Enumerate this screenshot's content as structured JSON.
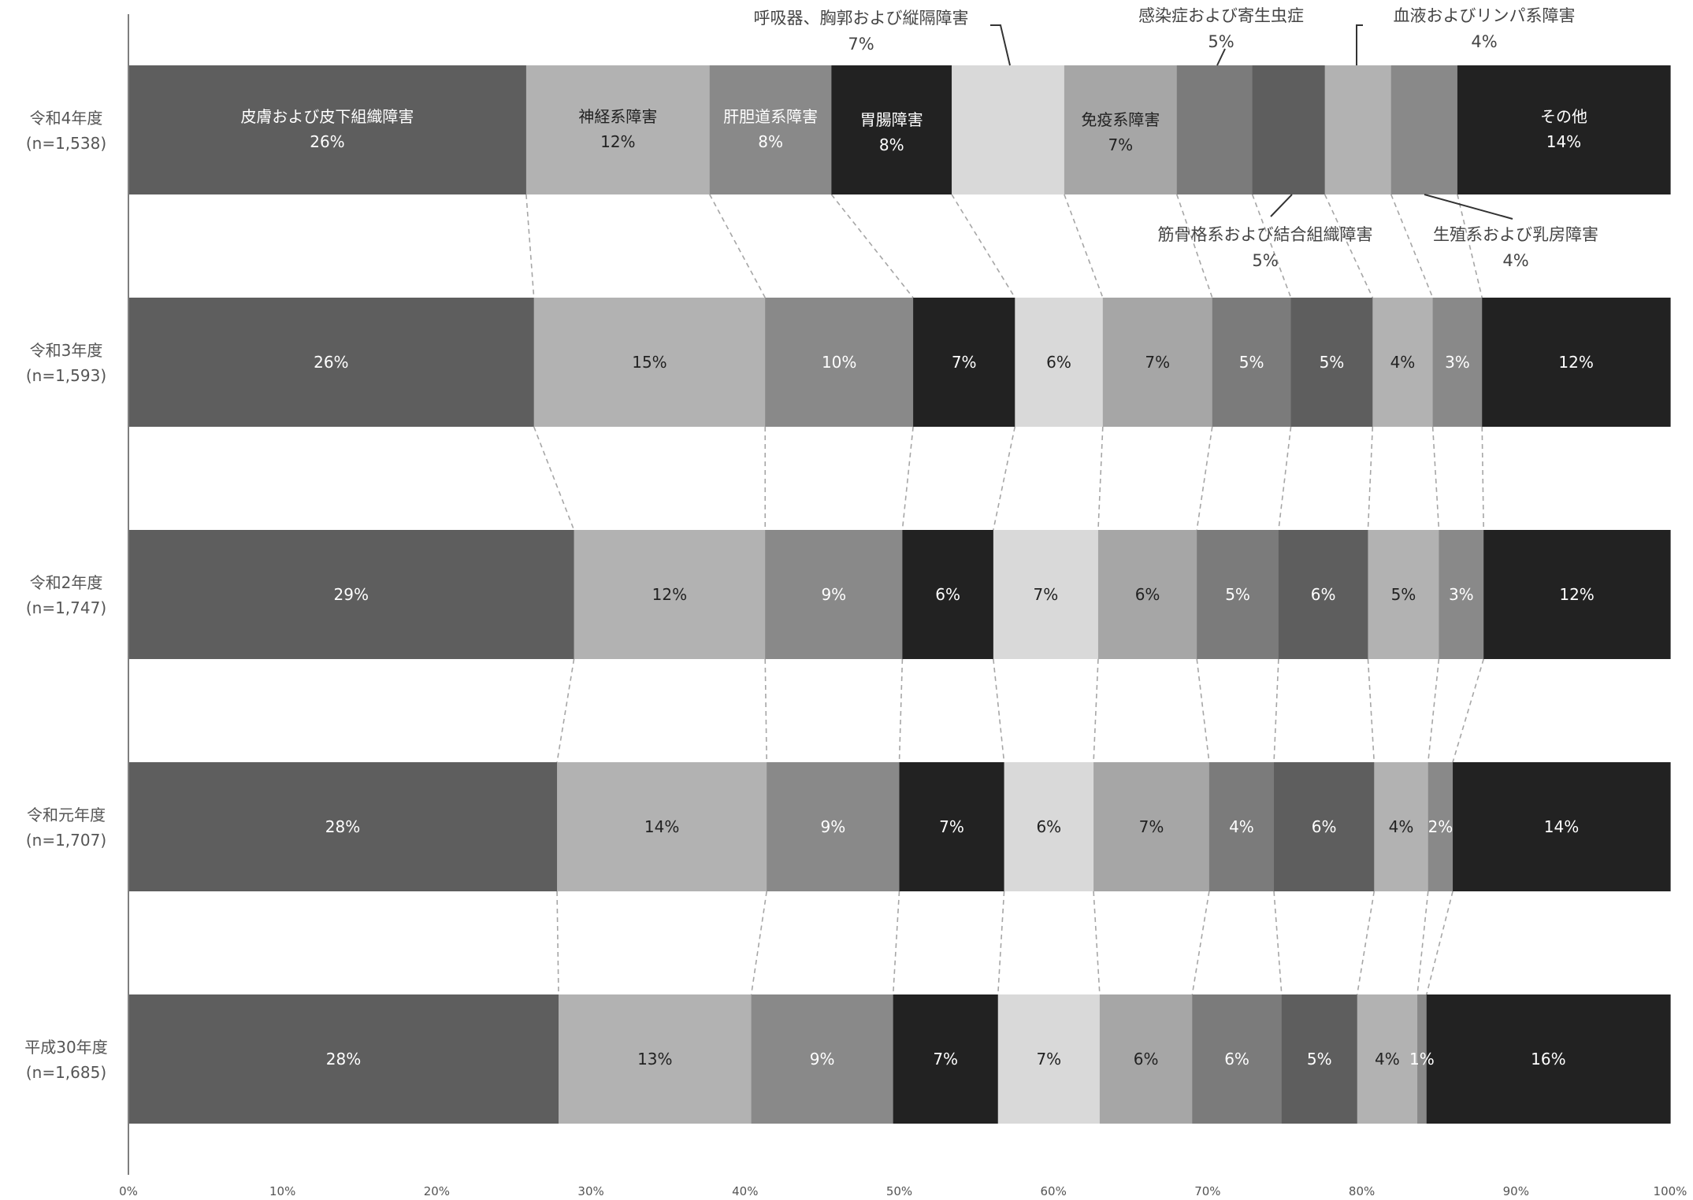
{
  "chart_data": {
    "type": "bar",
    "orientation": "horizontal",
    "stacked": true,
    "percent": true,
    "xlim": [
      0,
      100
    ],
    "x_ticks": [
      "0%",
      "10%",
      "20%",
      "30%",
      "40%",
      "50%",
      "60%",
      "70%",
      "80%",
      "90%",
      "100%"
    ],
    "grid": false,
    "legend": "none",
    "categories": [
      {
        "label": "令和4年度",
        "n": "(n=1,538)"
      },
      {
        "label": "令和3年度",
        "n": "(n=1,593)"
      },
      {
        "label": "令和2年度",
        "n": "(n=1,747)"
      },
      {
        "label": "令和元年度",
        "n": "(n=1,707)"
      },
      {
        "label": "平成30年度",
        "n": "(n=1,685)"
      }
    ],
    "series": [
      {
        "name": "皮膚および皮下組織障害",
        "color": "#5e5e5e",
        "text_color": "#ffffff",
        "values": [
          25.8,
          26.3,
          28.9,
          27.8,
          27.9
        ],
        "labels": [
          "26%",
          "26%",
          "29%",
          "28%",
          "28%"
        ]
      },
      {
        "name": "神経系障害",
        "color": "#b2b2b2",
        "text_color": "#222222",
        "values": [
          11.9,
          15.0,
          12.4,
          13.6,
          12.5
        ],
        "labels": [
          "12%",
          "15%",
          "12%",
          "14%",
          "13%"
        ]
      },
      {
        "name": "肝胆道系障害",
        "color": "#898989",
        "text_color": "#ffffff",
        "values": [
          7.9,
          9.6,
          8.9,
          8.6,
          9.2
        ],
        "labels": [
          "8%",
          "10%",
          "9%",
          "9%",
          "9%"
        ]
      },
      {
        "name": "胃腸障害",
        "color": "#222222",
        "text_color": "#ffffff",
        "values": [
          7.8,
          6.6,
          5.9,
          6.8,
          6.8
        ],
        "labels": [
          "8%",
          "7%",
          "6%",
          "7%",
          "7%"
        ]
      },
      {
        "name": "呼吸器、胸郭および縦隔障害",
        "color": "#d9d9d9",
        "text_color": "#222222",
        "values": [
          7.3,
          5.7,
          6.8,
          5.8,
          6.6
        ],
        "labels": [
          "7%",
          "6%",
          "7%",
          "6%",
          "7%"
        ]
      },
      {
        "name": "免疫系障害",
        "color": "#a6a6a6",
        "text_color": "#222222",
        "values": [
          7.3,
          7.1,
          6.4,
          7.5,
          6.0
        ],
        "labels": [
          "7%",
          "7%",
          "6%",
          "7%",
          "6%"
        ]
      },
      {
        "name": "感染症および寄生虫症",
        "color": "#7b7b7b",
        "text_color": "#ffffff",
        "values": [
          4.9,
          5.1,
          5.3,
          4.2,
          5.8
        ],
        "labels": [
          "5%",
          "5%",
          "5%",
          "4%",
          "6%"
        ]
      },
      {
        "name": "筋骨格系および結合組織障害",
        "color": "#5e5e5e",
        "text_color": "#ffffff",
        "values": [
          4.7,
          5.3,
          5.8,
          6.5,
          4.9
        ],
        "labels": [
          "5%",
          "5%",
          "6%",
          "6%",
          "5%"
        ]
      },
      {
        "name": "血液およびリンパ系障害",
        "color": "#b2b2b2",
        "text_color": "#222222",
        "values": [
          4.3,
          3.9,
          4.6,
          3.5,
          3.9
        ],
        "labels": [
          "4%",
          "4%",
          "5%",
          "4%",
          "4%"
        ]
      },
      {
        "name": "生殖系および乳房障害",
        "color": "#898989",
        "text_color": "#ffffff",
        "values": [
          4.3,
          3.2,
          2.9,
          1.6,
          0.6
        ],
        "labels": [
          "4%",
          "3%",
          "3%",
          "2%",
          "1%"
        ]
      },
      {
        "name": "その他",
        "color": "#222222",
        "text_color": "#ffffff",
        "values": [
          13.8,
          12.2,
          12.1,
          14.1,
          15.8
        ],
        "labels": [
          "14%",
          "12%",
          "12%",
          "14%",
          "16%"
        ]
      }
    ]
  }
}
